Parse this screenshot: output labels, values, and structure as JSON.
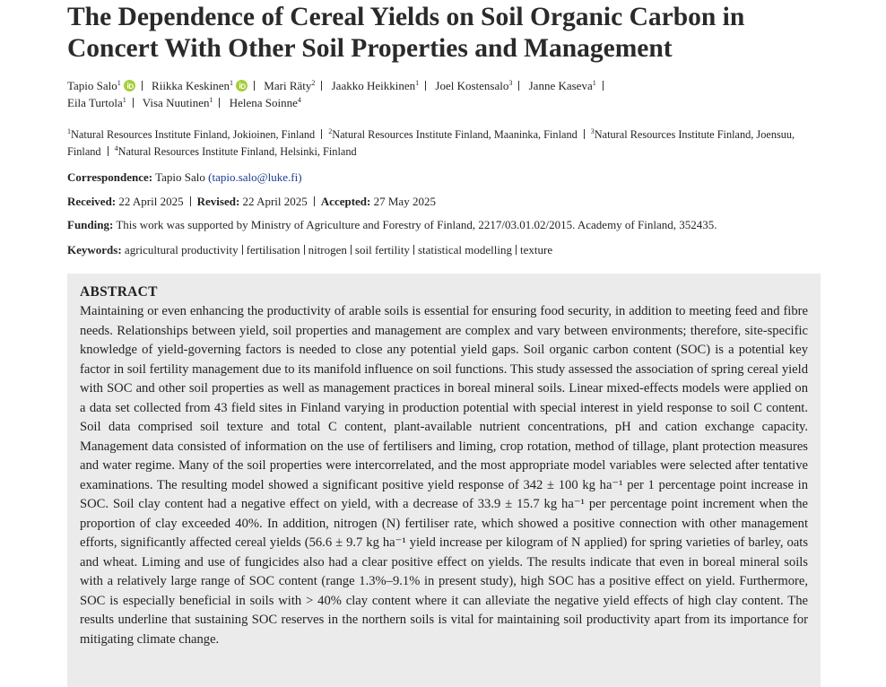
{
  "title": "The Dependence of Cereal Yields on Soil Organic Carbon in Concert With Other Soil Properties and Management",
  "authors": [
    {
      "name": "Tapio Salo",
      "aff": "1"
    },
    {
      "name": "Riikka Keskinen",
      "aff": "1"
    },
    {
      "name": "Mari Räty",
      "aff": "2"
    },
    {
      "name": "Jaakko Heikkinen",
      "aff": "1"
    },
    {
      "name": "Joel Kostensalo",
      "aff": "3"
    },
    {
      "name": "Janne Kaseva",
      "aff": "1"
    },
    {
      "name": "Eila Turtola",
      "aff": "1"
    },
    {
      "name": "Visa Nuutinen",
      "aff": "1"
    },
    {
      "name": "Helena Soinne",
      "aff": "4"
    }
  ],
  "affiliations": [
    {
      "num": "1",
      "text": "Natural Resources Institute Finland, Jokioinen, Finland"
    },
    {
      "num": "2",
      "text": "Natural Resources Institute Finland, Maaninka, Finland"
    },
    {
      "num": "3",
      "text": "Natural Resources Institute Finland, Joensuu, Finland"
    },
    {
      "num": "4",
      "text": "Natural Resources Institute Finland, Helsinki, Finland"
    }
  ],
  "correspondence": {
    "label": "Correspondence:",
    "name": "Tapio Salo",
    "email": "(tapio.salo@luke.fi)"
  },
  "dates": [
    {
      "label": "Received:",
      "value": "22 April 2025"
    },
    {
      "label": "Revised:",
      "value": "22 April 2025"
    },
    {
      "label": "Accepted:",
      "value": "27 May 2025"
    }
  ],
  "funding": {
    "label": "Funding:",
    "text": "This work was supported by Ministry of Agriculture and Forestry of Finland, 2217/03.01.02/2015. Academy of Finland, 352435."
  },
  "keywords": {
    "label": "Keywords:",
    "items": [
      "agricultural productivity",
      "fertilisation",
      "nitrogen",
      "soil fertility",
      "statistical modelling",
      "texture"
    ]
  },
  "abstract": {
    "heading": "ABSTRACT",
    "text": "Maintaining or even enhancing the productivity of arable soils is essential for ensuring food security, in addition to meeting feed and fibre needs. Relationships between yield, soil properties and management are complex and vary between environments; therefore, site-specific knowledge of yield-governing factors is needed to close any potential yield gaps. Soil organic carbon content (SOC) is a potential key factor in soil fertility management due to its manifold influence on soil functions. This study assessed the association of spring cereal yield with SOC and other soil properties as well as management practices in boreal mineral soils. Linear mixed-effects models were applied on a data set collected from 43 field sites in Finland varying in production potential with special interest in yield response to soil C content. Soil data comprised soil texture and total C content, plant-available nutrient concentrations, pH and cation exchange capacity. Management data consisted of information on the use of fertilisers and liming, crop rotation, method of tillage, plant protection measures and water regime. Many of the soil properties were intercorrelated, and the most appropriate model variables were selected after tentative examinations. The resulting model showed a significant positive yield response of 342 ± 100 kg ha⁻¹ per 1 percentage point increase in SOC. Soil clay content had a negative effect on yield, with a decrease of 33.9 ± 15.7 kg ha⁻¹ per percentage point increment when the proportion of clay exceeded 40%. In addition, nitrogen (N) fertiliser rate, which showed a positive connection with other management efforts, significantly affected cereal yields (56.6 ± 9.7 kg ha⁻¹ yield increase per kilogram of N applied) for spring varieties of barley, oats and wheat. Liming and use of fungicides also had a clear positive effect on yields. The results indicate that even in boreal mineral soils with a relatively large range of SOC content (range 1.3%–9.1% in present study), high SOC has a positive effect on yield. Furthermore, SOC is especially beneficial in soils with > 40% clay content where it can alleviate the negative yield effects of high clay content. The results underline that sustaining SOC reserves in the northern soils is vital for maintaining soil productivity apart from its importance for mitigating climate change."
  }
}
